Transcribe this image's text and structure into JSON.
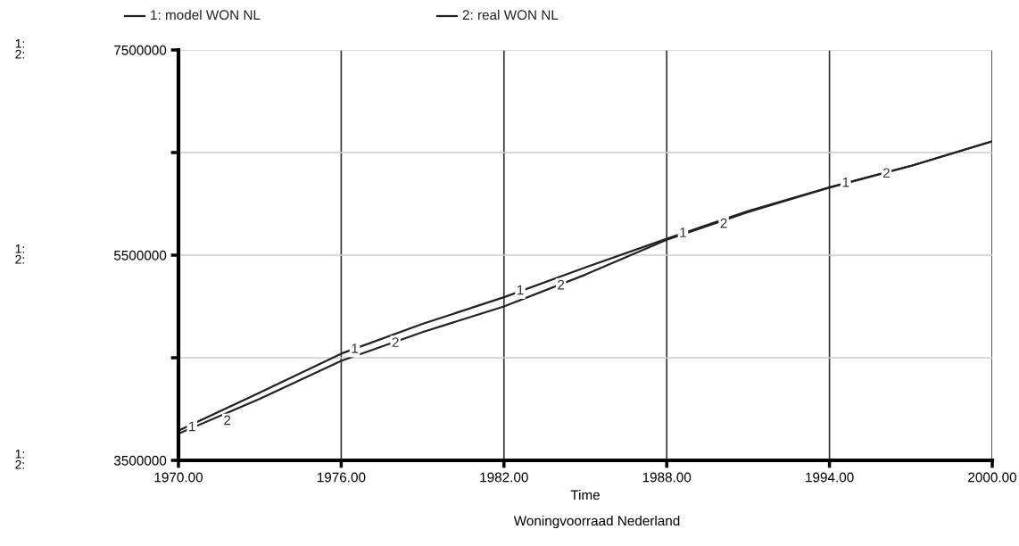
{
  "chart_data": {
    "type": "line",
    "title": "Woningvoorraad Nederland",
    "xlabel": "Time",
    "x": [
      1970,
      1973,
      1976,
      1979,
      1982,
      1985,
      1988,
      1991,
      1994,
      1997,
      2000
    ],
    "series": [
      {
        "name": "1: model WON NL",
        "color": "#222222",
        "values": [
          3790000,
          4160000,
          4540000,
          4830000,
          5090000,
          5380000,
          5660000,
          5930000,
          6160000,
          6370000,
          6610000
        ]
      },
      {
        "name": "2: real WON NL",
        "color": "#222222",
        "values": [
          3760000,
          4100000,
          4470000,
          4750000,
          5000000,
          5310000,
          5650000,
          5920000,
          6160000,
          6370000,
          6610000
        ]
      }
    ],
    "xlim": [
      1970,
      2000
    ],
    "ylim": [
      3500000,
      7500000
    ],
    "xticks": [
      {
        "value": 1970,
        "label": "1970.00"
      },
      {
        "value": 1976,
        "label": "1976.00"
      },
      {
        "value": 1982,
        "label": "1982.00"
      },
      {
        "value": 1988,
        "label": "1988.00"
      },
      {
        "value": 1994,
        "label": "1994.00"
      },
      {
        "value": 2000,
        "label": "2000.00"
      }
    ],
    "yticks": [
      3500000,
      {
        "value": 4500000,
        "label": null
      },
      5500000,
      {
        "value": 6500000,
        "label": null
      },
      7500000
    ],
    "grid": true,
    "legend": "top",
    "marker": "none",
    "line_style": "solid",
    "annotations": [
      {
        "text": "1",
        "x": 1970.5,
        "y": 3820000
      },
      {
        "text": "2",
        "x": 1971.8,
        "y": 3880000
      },
      {
        "text": "1",
        "x": 1976.5,
        "y": 4580000
      },
      {
        "text": "2",
        "x": 1978.0,
        "y": 4640000
      },
      {
        "text": "1",
        "x": 1982.6,
        "y": 5150000
      },
      {
        "text": "2",
        "x": 1984.1,
        "y": 5200000
      },
      {
        "text": "1",
        "x": 1988.6,
        "y": 5710000
      },
      {
        "text": "2",
        "x": 1990.1,
        "y": 5800000
      },
      {
        "text": "1",
        "x": 1994.6,
        "y": 6200000
      },
      {
        "text": "2",
        "x": 1996.1,
        "y": 6290000
      },
      "1:\n2:",
      "1:\n2:",
      "1:\n2:"
    ]
  }
}
